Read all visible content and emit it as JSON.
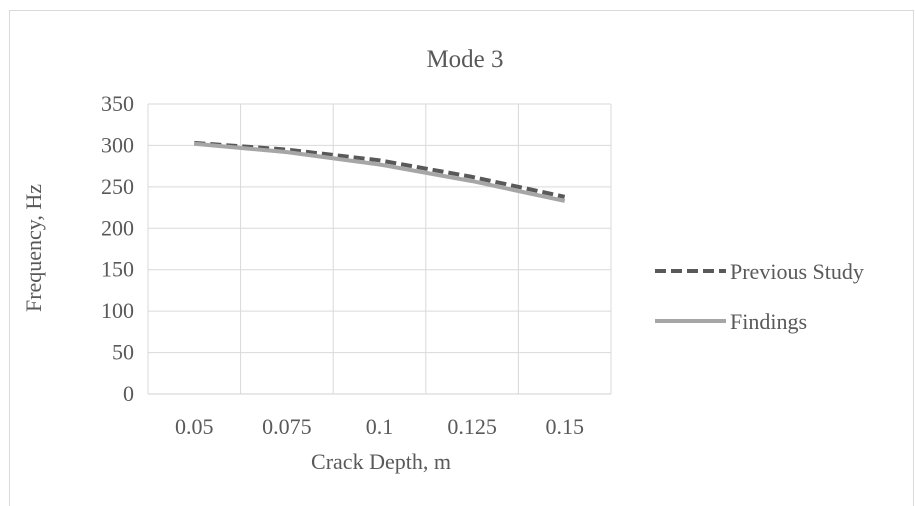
{
  "chart_data": {
    "type": "line",
    "title": "Mode 3",
    "xlabel": "Crack Depth, m",
    "ylabel": "Frequency, Hz",
    "categories": [
      "0.05",
      "0.075",
      "0.1",
      "0.125",
      "0.15"
    ],
    "x": [
      0.05,
      0.075,
      0.1,
      0.125,
      0.15
    ],
    "ylim": [
      0,
      350
    ],
    "yticks": [
      0,
      50,
      100,
      150,
      200,
      250,
      300,
      350
    ],
    "grid": true,
    "legend_position": "right",
    "series": [
      {
        "name": "Previous Study",
        "values": [
          303,
          295,
          282,
          262,
          238
        ],
        "color": "#595959",
        "style": "dashed"
      },
      {
        "name": "Findings",
        "values": [
          302,
          292,
          277,
          257,
          233
        ],
        "color": "#a6a6a6",
        "style": "solid"
      }
    ]
  }
}
